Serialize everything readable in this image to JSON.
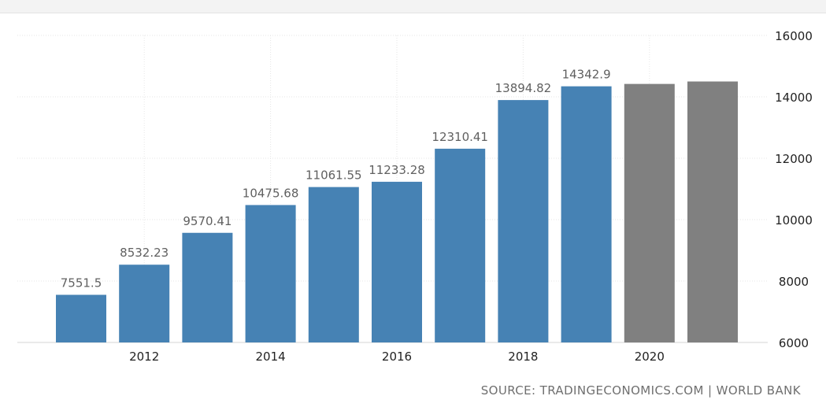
{
  "chart_data": {
    "type": "bar",
    "title": "",
    "xlabel": "",
    "ylabel": "",
    "ylim": [
      6000,
      16000
    ],
    "yticks": [
      "6000",
      "8000",
      "10000",
      "12000",
      "14000",
      "16000"
    ],
    "xticks": [
      "2012",
      "2014",
      "2016",
      "2018",
      "2020"
    ],
    "grid": true,
    "y_axis_position": "right",
    "bars": [
      {
        "year": 2011,
        "value": 7551.5,
        "label": "7551.5",
        "kind": "actual"
      },
      {
        "year": 2012,
        "value": 8532.23,
        "label": "8532.23",
        "kind": "actual"
      },
      {
        "year": 2013,
        "value": 9570.41,
        "label": "9570.41",
        "kind": "actual"
      },
      {
        "year": 2014,
        "value": 10475.68,
        "label": "10475.68",
        "kind": "actual"
      },
      {
        "year": 2015,
        "value": 11061.55,
        "label": "11061.55",
        "kind": "actual"
      },
      {
        "year": 2016,
        "value": 11233.28,
        "label": "11233.28",
        "kind": "actual"
      },
      {
        "year": 2017,
        "value": 12310.41,
        "label": "12310.41",
        "kind": "actual"
      },
      {
        "year": 2018,
        "value": 13894.82,
        "label": "13894.82",
        "kind": "actual"
      },
      {
        "year": 2019,
        "value": 14342.9,
        "label": "14342.9",
        "kind": "actual"
      },
      {
        "year": 2020,
        "value": 14420,
        "label": "",
        "kind": "forecast"
      },
      {
        "year": 2021,
        "value": 14500,
        "label": "",
        "kind": "forecast"
      }
    ],
    "colors": {
      "actual": "#4682b4",
      "forecast": "#808080"
    }
  },
  "source": "SOURCE: TRADINGECONOMICS.COM | WORLD BANK"
}
